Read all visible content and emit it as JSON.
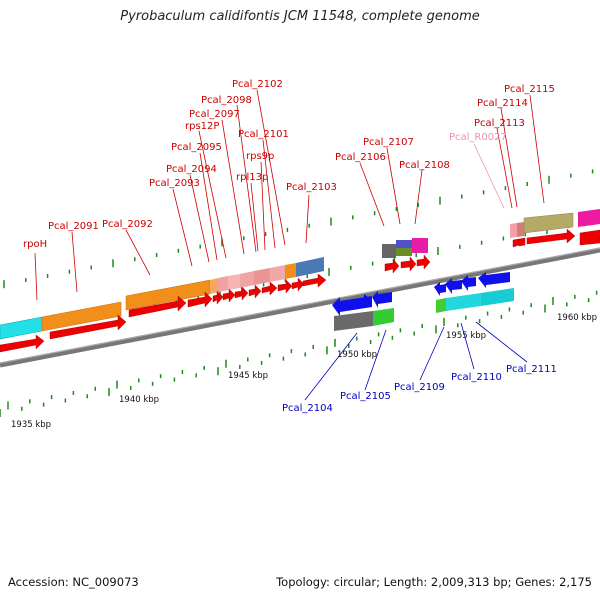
{
  "title": "Pyrobaculum calidifontis JCM 11548, complete genome",
  "footer": {
    "accession": "Accession: NC_009073",
    "summary": "Topology: circular; Length: 2,009,313 bp; Genes: 2,175"
  },
  "colors": {
    "backbone": "#7a7a7a",
    "tick": "#1a8a1a",
    "label_top": "#cc0000",
    "label_bottom": "#0000bb",
    "label_rna": "#f08cb4"
  },
  "kbp_labels": [
    "1935 kbp",
    "1940 kbp",
    "1945 kbp",
    "1950 kbp",
    "1955 kbp",
    "1960 kbp"
  ],
  "top_labels": [
    "rpoH",
    "Pcal_2091",
    "Pcal_2092",
    "Pcal_2093",
    "Pcal_2094",
    "Pcal_2095",
    "rps12P",
    "Pcal_2097",
    "Pcal_2098",
    "Pcal_2102",
    "Pcal_2101",
    "rps9p",
    "rpl13p",
    "Pcal_2103",
    "Pcal_2106",
    "Pcal_2107",
    "Pcal_2108",
    "Pcal_R0027",
    "Pcal_2113",
    "Pcal_2114",
    "Pcal_2115"
  ],
  "bottom_labels": [
    "Pcal_2104",
    "Pcal_2105",
    "Pcal_2109",
    "Pcal_2110",
    "Pcal_2111"
  ]
}
